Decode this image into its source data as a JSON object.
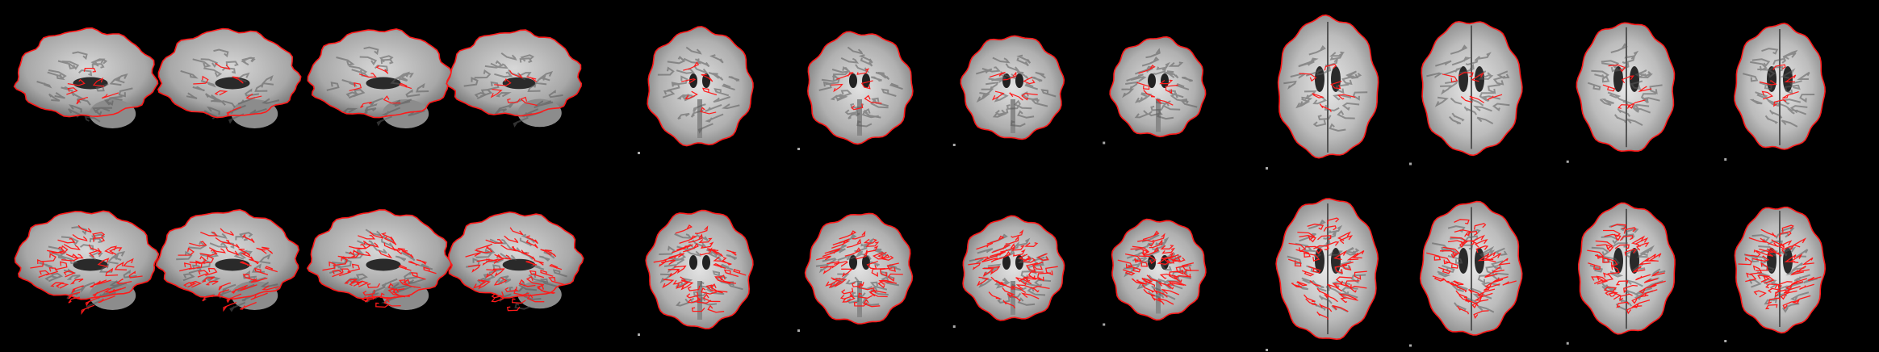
{
  "figure": {
    "background": "#000000",
    "outline_color": "#ff1a1a",
    "tissue_light": "#e6e6e6",
    "tissue_mid": "#9a9a9a",
    "tissue_dark": "#4a4a4a"
  },
  "rows": [
    {
      "id": "row-1",
      "overlay": "brain-mask-edge"
    },
    {
      "id": "row-2",
      "overlay": "white-matter-edge"
    }
  ],
  "views": [
    {
      "id": "sag-1",
      "plane": "sagittal"
    },
    {
      "id": "sag-2",
      "plane": "sagittal"
    },
    {
      "id": "sag-3",
      "plane": "sagittal"
    },
    {
      "id": "sag-4",
      "plane": "sagittal"
    },
    {
      "id": "cor-1",
      "plane": "coronal"
    },
    {
      "id": "cor-2",
      "plane": "coronal"
    },
    {
      "id": "cor-3",
      "plane": "coronal"
    },
    {
      "id": "cor-4",
      "plane": "coronal"
    },
    {
      "id": "axi-1",
      "plane": "axial"
    },
    {
      "id": "axi-2",
      "plane": "axial"
    },
    {
      "id": "axi-3",
      "plane": "axial"
    },
    {
      "id": "axi-4",
      "plane": "axial"
    }
  ]
}
